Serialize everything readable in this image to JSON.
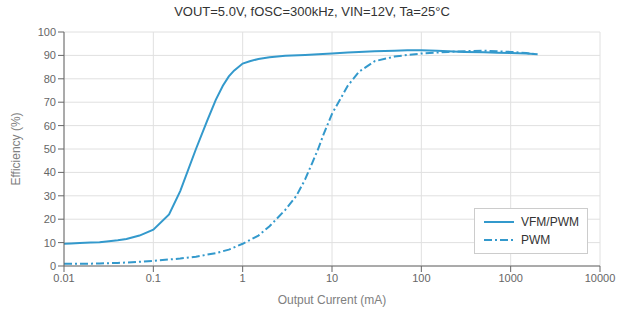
{
  "chart_data": {
    "type": "line",
    "title": "VOUT=5.0V, fOSC=300kHz, VIN=12V, Ta=25°C",
    "xlabel": "Output Current (mA)",
    "ylabel": "Efficiency (%)",
    "log": "x",
    "grid": true,
    "legend": "lower right",
    "xlim": [
      0.01,
      10000
    ],
    "xticks": [
      0.01,
      0.1,
      1,
      10,
      100,
      1000,
      10000
    ],
    "ylim": [
      0,
      100
    ],
    "yticks": [
      0,
      10,
      20,
      30,
      40,
      50,
      60,
      70,
      80,
      90,
      100
    ],
    "series": [
      {
        "name": "VFM/PWM",
        "color": "#3399cc",
        "line_style": "solid",
        "x": [
          0.01,
          0.012,
          0.015,
          0.02,
          0.025,
          0.03,
          0.04,
          0.05,
          0.07,
          0.1,
          0.15,
          0.2,
          0.3,
          0.4,
          0.5,
          0.6,
          0.7,
          0.8,
          1.0,
          1.2,
          1.5,
          2.0,
          3.0,
          5.0,
          7.0,
          10.0,
          15.0,
          20.0,
          30.0,
          50.0,
          70.0,
          100.0,
          150.0,
          200.0,
          300.0,
          500.0,
          700.0,
          1000.0,
          1500.0,
          2000.0
        ],
        "values": [
          9.5,
          9.6,
          9.8,
          10.0,
          10.2,
          10.5,
          11.0,
          11.5,
          13.0,
          15.5,
          22.0,
          32.0,
          50.0,
          62.0,
          71.0,
          77.0,
          81.0,
          83.5,
          86.5,
          87.5,
          88.5,
          89.2,
          89.8,
          90.2,
          90.5,
          90.8,
          91.2,
          91.5,
          91.8,
          92.0,
          92.2,
          92.2,
          92.0,
          91.8,
          91.5,
          91.3,
          91.1,
          91.0,
          90.8,
          90.5
        ]
      },
      {
        "name": "PWM",
        "color": "#3399cc",
        "line_style": "dashdot",
        "x": [
          0.01,
          0.012,
          0.015,
          0.02,
          0.025,
          0.03,
          0.04,
          0.05,
          0.07,
          0.1,
          0.15,
          0.2,
          0.3,
          0.5,
          0.7,
          1.0,
          1.5,
          2.0,
          3.0,
          4.0,
          5.0,
          6.0,
          7.0,
          8.0,
          10.0,
          15.0,
          20.0,
          30.0,
          50.0,
          70.0,
          100.0,
          150.0,
          200.0,
          300.0,
          500.0,
          700.0,
          1000.0,
          1500.0,
          2000.0
        ],
        "values": [
          1.0,
          1.0,
          1.0,
          1.0,
          1.1,
          1.2,
          1.3,
          1.5,
          1.8,
          2.2,
          2.8,
          3.2,
          4.0,
          5.5,
          7.0,
          9.5,
          13.0,
          17.0,
          24.0,
          30.0,
          37.0,
          44.0,
          50.0,
          56.0,
          65.0,
          77.0,
          83.0,
          87.5,
          89.5,
          90.2,
          90.8,
          91.2,
          91.5,
          91.8,
          92.0,
          91.8,
          91.5,
          91.0,
          90.5
        ]
      }
    ]
  }
}
